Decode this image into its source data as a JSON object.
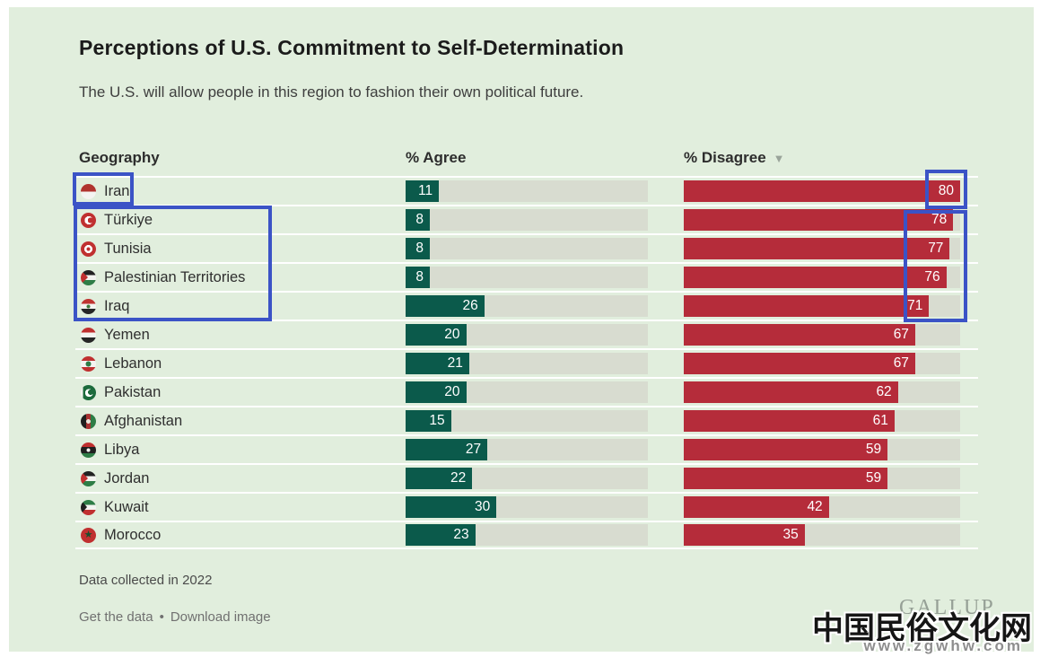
{
  "header": {
    "title": "Perceptions of U.S. Commitment to Self-Determination",
    "subtitle": "The U.S. will allow people in this region to fashion their own political future."
  },
  "table": {
    "columns": [
      "Geography",
      "% Agree",
      "% Disagree"
    ],
    "sort_indicator": "▼"
  },
  "chart_data": {
    "type": "bar",
    "title": "Perceptions of U.S. Commitment to Self-Determination",
    "subtitle": "The U.S. will allow people in this region to fashion their own political future.",
    "categories": [
      "Iran",
      "Türkiye",
      "Tunisia",
      "Palestinian Territories",
      "Iraq",
      "Yemen",
      "Lebanon",
      "Pakistan",
      "Afghanistan",
      "Libya",
      "Jordan",
      "Kuwait",
      "Morocco"
    ],
    "flags": [
      "iran",
      "turkiye",
      "tunisia",
      "palestine",
      "iraq",
      "yemen",
      "lebanon",
      "pakistan",
      "afghanistan",
      "libya",
      "jordan",
      "kuwait",
      "morocco"
    ],
    "series": [
      {
        "name": "% Agree",
        "values": [
          11,
          8,
          8,
          8,
          26,
          20,
          21,
          20,
          15,
          27,
          22,
          30,
          23
        ]
      },
      {
        "name": "% Disagree",
        "values": [
          80,
          78,
          77,
          76,
          71,
          67,
          67,
          62,
          61,
          59,
          59,
          42,
          35
        ]
      }
    ],
    "xlim": [
      0,
      80
    ],
    "sorted_by": "% Disagree descending",
    "legend_position": "column headers",
    "grid": false,
    "colors": {
      "agree_bar": "#0b5a4b",
      "disagree_bar": "#b52c3a",
      "bar_track": "#d8dcd0",
      "background": "#e1eedd",
      "highlight_box": "#3b53c6"
    }
  },
  "footer": {
    "note": "Data collected in 2022",
    "link_get_data": "Get the data",
    "link_separator": "•",
    "link_download": "Download image",
    "brand": "GALLUP"
  },
  "watermark": {
    "line1": "中国民俗文化网",
    "line2": "www.zgwhw.com"
  }
}
